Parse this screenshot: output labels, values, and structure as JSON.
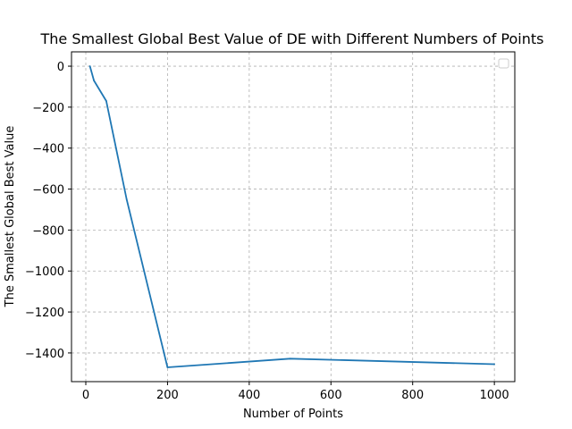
{
  "chart_data": {
    "type": "line",
    "title": "The Smallest Global Best Value of DE with Different Numbers of Points",
    "xlabel": "Number of Points",
    "ylabel": "The Smallest Global Best Value",
    "xlim": [
      -35,
      1050
    ],
    "ylim": [
      -1540,
      70
    ],
    "xticks": [
      0,
      200,
      400,
      600,
      800,
      1000
    ],
    "yticks": [
      0,
      -200,
      -400,
      -600,
      -800,
      -1000,
      -1200,
      -1400
    ],
    "grid": true,
    "legend": "top-right",
    "series": [
      {
        "color": "#1f77b4",
        "x": [
          10,
          20,
          50,
          100,
          200,
          500,
          1000
        ],
        "y": [
          0,
          -70,
          -170,
          -650,
          -1470,
          -1428,
          -1455
        ]
      }
    ]
  }
}
